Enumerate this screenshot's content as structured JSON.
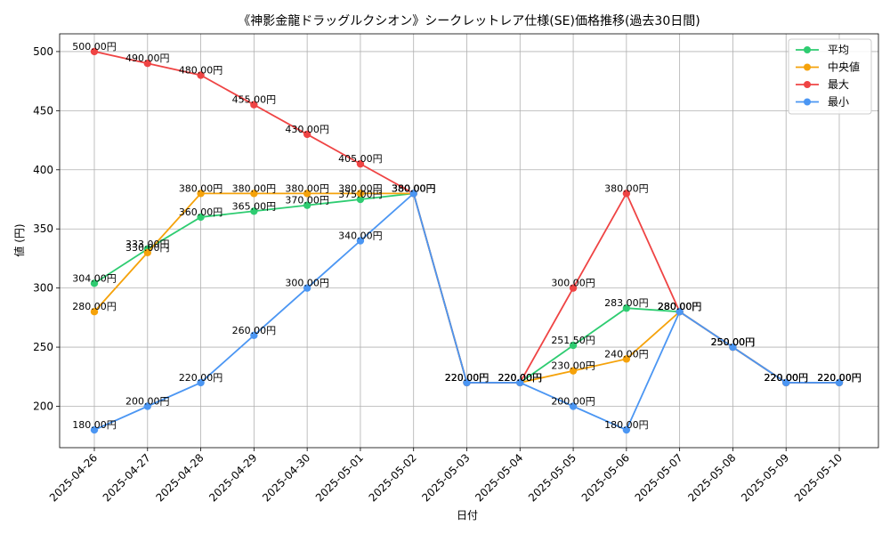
{
  "chart_data": {
    "type": "line",
    "title": "《神影金龍ドラッグルクシオン》シークレットレア仕様(SE)価格推移(過去30日間)",
    "xlabel": "日付",
    "ylabel": "値 (円)",
    "ylim": [
      165,
      515
    ],
    "yticks": [
      200,
      250,
      300,
      350,
      400,
      450,
      500
    ],
    "grid": true,
    "legend_position": "top-right",
    "value_suffix": "円",
    "categories": [
      "2025-04-26",
      "2025-04-27",
      "2025-04-28",
      "2025-04-29",
      "2025-04-30",
      "2025-05-01",
      "2025-05-02",
      "2025-05-03",
      "2025-05-04",
      "2025-05-05",
      "2025-05-06",
      "2025-05-07",
      "2025-05-08",
      "2025-05-09",
      "2025-05-10"
    ],
    "series": [
      {
        "name": "平均",
        "color": "#2ecc71",
        "values": [
          304,
          333,
          360,
          365,
          370,
          375,
          380,
          220,
          220,
          251.5,
          283,
          280,
          250,
          220,
          220
        ]
      },
      {
        "name": "中央値",
        "color": "#f5a20a",
        "values": [
          280,
          330,
          380,
          380,
          380,
          380,
          380,
          220,
          220,
          230,
          240,
          280,
          250,
          220,
          220
        ]
      },
      {
        "name": "最大",
        "color": "#ef4444",
        "values": [
          500,
          490,
          480,
          455,
          430,
          405,
          380,
          220,
          220,
          300,
          380,
          280,
          250,
          220,
          220
        ]
      },
      {
        "name": "最小",
        "color": "#4b96f3",
        "values": [
          180,
          200,
          220,
          260,
          300,
          340,
          380,
          220,
          220,
          200,
          180,
          280,
          250,
          220,
          220
        ]
      }
    ]
  }
}
